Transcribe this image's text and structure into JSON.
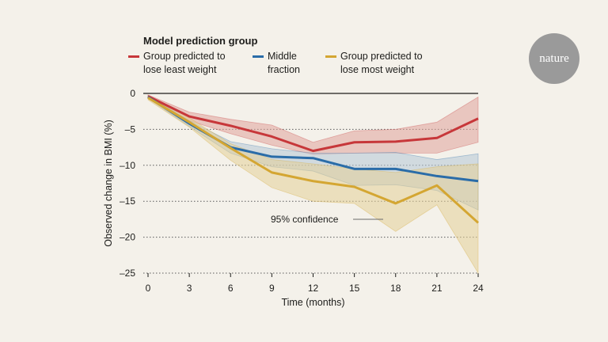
{
  "brand": {
    "name": "nature"
  },
  "chart_data": {
    "type": "line",
    "legend_title": "Model prediction group",
    "legend_position": "top",
    "xlabel": "Time (months)",
    "ylabel": "Observed change in BMI (%)",
    "x": [
      0,
      3,
      6,
      9,
      12,
      15,
      18,
      21,
      24
    ],
    "x_ticks": [
      "0",
      "3",
      "6",
      "9",
      "12",
      "15",
      "18",
      "21",
      "24"
    ],
    "y_ticks": [
      "0",
      "–5",
      "–10",
      "–15",
      "–20",
      "–25"
    ],
    "y_tick_values": [
      0,
      -5,
      -10,
      -15,
      -20,
      -25
    ],
    "xlim": [
      0,
      24
    ],
    "ylim": [
      -25,
      0
    ],
    "gridlines": "dotted horizontal",
    "annotation": "95% confidence",
    "series": [
      {
        "name": "Group predicted to lose least weight",
        "color": "#c7373a",
        "band_color": "#e0a39a",
        "values": [
          -0.4,
          -3.2,
          -4.5,
          -6.0,
          -8.0,
          -6.8,
          -6.7,
          -6.2,
          -3.5
        ],
        "lower": [
          -0.6,
          -3.8,
          -5.6,
          -7.2,
          -8.5,
          -8.3,
          -8.3,
          -8.3,
          -6.8
        ],
        "upper": [
          -0.2,
          -2.6,
          -3.6,
          -4.4,
          -6.8,
          -5.2,
          -5.0,
          -4.0,
          -0.5
        ]
      },
      {
        "name": "Middle fraction",
        "color": "#2a6ca8",
        "band_color": "#b4c6d6",
        "values": [
          -0.5,
          -4.2,
          -7.5,
          -8.8,
          -9.0,
          -10.5,
          -10.5,
          -11.5,
          -12.2
        ],
        "lower": [
          -0.7,
          -4.6,
          -8.3,
          -10.2,
          -10.8,
          -12.8,
          -12.7,
          -13.5,
          -16.2
        ],
        "upper": [
          -0.3,
          -3.8,
          -6.7,
          -7.7,
          -8.3,
          -8.3,
          -8.2,
          -9.2,
          -8.4
        ]
      },
      {
        "name": "Group predicted to lose most weight",
        "color": "#d4a632",
        "band_color": "#e3d097",
        "values": [
          -0.6,
          -4.0,
          -7.6,
          -11.0,
          -12.2,
          -13.0,
          -15.3,
          -12.8,
          -18.0
        ],
        "lower": [
          -0.9,
          -4.7,
          -9.3,
          -13.1,
          -15.0,
          -15.3,
          -19.2,
          -15.5,
          -25.0
        ],
        "upper": [
          -0.3,
          -3.4,
          -7.0,
          -9.2,
          -9.8,
          -10.5,
          -11.0,
          -10.2,
          -9.8
        ]
      }
    ]
  }
}
